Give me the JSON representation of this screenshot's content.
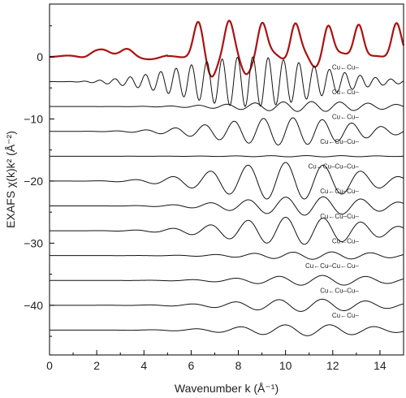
{
  "chart_data": {
    "type": "line",
    "title": "",
    "xlabel": "Wavenumber k (Å⁻¹)",
    "ylabel": "EXAFS χ(k)k² (Å⁻²)",
    "xlim": [
      0,
      15
    ],
    "ylim": [
      -48,
      8.5
    ],
    "xticks": [
      0,
      2,
      4,
      6,
      8,
      10,
      12,
      14
    ],
    "yticks": [
      0,
      -10,
      -20,
      -30,
      -40
    ],
    "grid": false,
    "legend": "none",
    "colors": {
      "total": "#aa1111",
      "paths": "#111111",
      "frame": "#000000"
    },
    "series": [
      {
        "label": "",
        "offset": 0,
        "amplitude": 5.5,
        "color": "#aa1111",
        "role": "total",
        "k_range": [
          0,
          15
        ],
        "peaks_k": [
          1.9,
          2.3,
          3.3,
          6.3,
          7.6,
          9.0,
          10.4,
          11.8,
          13.1,
          14.7
        ]
      },
      {
        "label": "Cu←Cu–",
        "offset": -4,
        "amplitude": 4.0,
        "center_k": 8.5,
        "frequency": 0.65,
        "color": "#111111"
      },
      {
        "label": "Cu←Cu–",
        "offset": -8,
        "amplitude": 0.8,
        "center_k": 11.0,
        "frequency": 1.2,
        "color": "#111111"
      },
      {
        "label": "Cu←Cu–",
        "offset": -12,
        "amplitude": 2.2,
        "center_k": 10.0,
        "frequency": 1.25,
        "color": "#111111"
      },
      {
        "label": "Cu←Cu–Cu–",
        "offset": -16,
        "amplitude": 0.1,
        "center_k": 11.0,
        "frequency": 1.5,
        "color": "#111111"
      },
      {
        "label": "Cu←Cu–Cu–Cu–",
        "offset": -20,
        "amplitude": 3.0,
        "center_k": 10.0,
        "frequency": 1.6,
        "color": "#111111"
      },
      {
        "label": "Cu←Cu–Cu–",
        "offset": -24,
        "amplitude": 1.5,
        "center_k": 11.0,
        "frequency": 1.6,
        "color": "#111111"
      },
      {
        "label": "Cu←Cu–Cu–",
        "offset": -28,
        "amplitude": 2.2,
        "center_k": 10.5,
        "frequency": 1.6,
        "color": "#111111"
      },
      {
        "label": "Cu←Cu–",
        "offset": -32,
        "amplitude": 0.6,
        "center_k": 11.5,
        "frequency": 1.65,
        "color": "#111111"
      },
      {
        "label": "Cu←Cu–Cu←Cu–",
        "offset": -36,
        "amplitude": 0.8,
        "center_k": 11.5,
        "frequency": 1.85,
        "color": "#111111"
      },
      {
        "label": "Cu←Cu–Cu–",
        "offset": -40,
        "amplitude": 1.0,
        "center_k": 11.0,
        "frequency": 1.85,
        "color": "#111111"
      },
      {
        "label": "Cu←Cu–",
        "offset": -44,
        "amplitude": 0.9,
        "center_k": 11.0,
        "frequency": 1.9,
        "color": "#111111"
      }
    ]
  }
}
